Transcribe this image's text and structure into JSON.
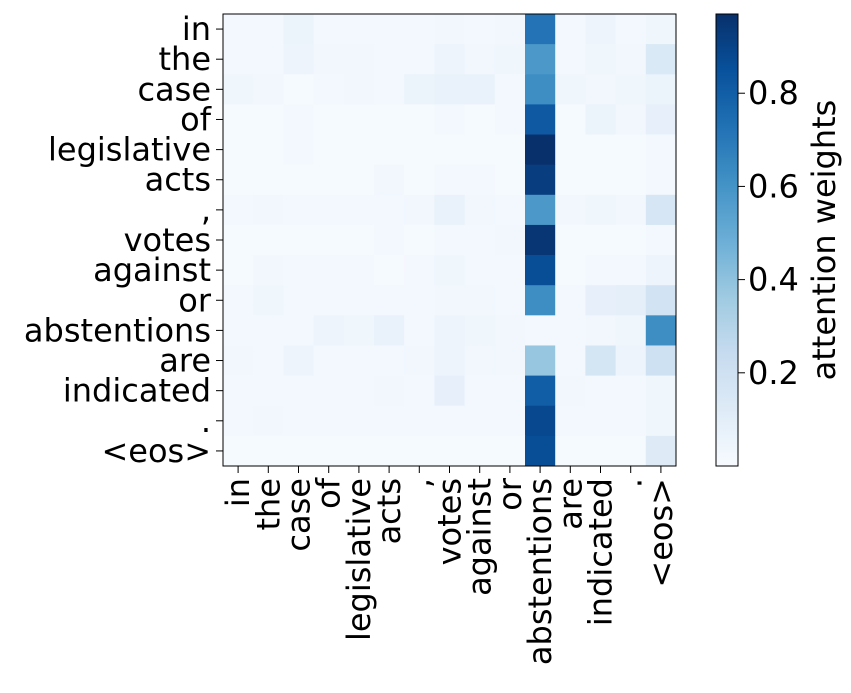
{
  "chart_data": {
    "type": "heatmap",
    "colormap": "Blues",
    "x_labels": [
      "in",
      "the",
      "case",
      "of",
      "legislative",
      "acts",
      ",",
      "votes",
      "against",
      "or",
      "abstentions",
      "are",
      "indicated",
      ".",
      "<eos>"
    ],
    "y_labels": [
      "in",
      "the",
      "case",
      "of",
      "legislative",
      "acts",
      ",",
      "votes",
      "against",
      "or",
      "abstentions",
      "are",
      "indicated",
      ".",
      "<eos>"
    ],
    "colorbar": {
      "label": "attention weights",
      "range": [
        0.0,
        0.97
      ],
      "ticks": [
        0.2,
        0.4,
        0.6,
        0.8
      ],
      "tick_labels": [
        "0.2",
        "0.4",
        "0.6",
        "0.8"
      ]
    },
    "values": [
      [
        0.02,
        0.02,
        0.06,
        0.02,
        0.02,
        0.02,
        0.02,
        0.03,
        0.02,
        0.03,
        0.72,
        0.02,
        0.05,
        0.02,
        0.04
      ],
      [
        0.02,
        0.02,
        0.05,
        0.03,
        0.03,
        0.02,
        0.02,
        0.05,
        0.03,
        0.04,
        0.58,
        0.02,
        0.04,
        0.03,
        0.14
      ],
      [
        0.04,
        0.03,
        0.01,
        0.02,
        0.03,
        0.02,
        0.06,
        0.07,
        0.07,
        0.02,
        0.62,
        0.04,
        0.03,
        0.04,
        0.06
      ],
      [
        0.01,
        0.01,
        0.02,
        0.01,
        0.01,
        0.01,
        0.01,
        0.02,
        0.01,
        0.02,
        0.82,
        0.01,
        0.06,
        0.03,
        0.08
      ],
      [
        0.01,
        0.01,
        0.02,
        0.01,
        0.01,
        0.01,
        0.01,
        0.01,
        0.01,
        0.01,
        0.97,
        0.01,
        0.01,
        0.01,
        0.02
      ],
      [
        0.01,
        0.01,
        0.01,
        0.01,
        0.01,
        0.03,
        0.01,
        0.02,
        0.02,
        0.01,
        0.92,
        0.01,
        0.01,
        0.01,
        0.02
      ],
      [
        0.02,
        0.03,
        0.02,
        0.02,
        0.02,
        0.02,
        0.03,
        0.07,
        0.03,
        0.02,
        0.58,
        0.03,
        0.04,
        0.03,
        0.16
      ],
      [
        0.01,
        0.01,
        0.01,
        0.01,
        0.01,
        0.02,
        0.01,
        0.02,
        0.02,
        0.03,
        0.95,
        0.01,
        0.01,
        0.01,
        0.02
      ],
      [
        0.01,
        0.03,
        0.02,
        0.02,
        0.02,
        0.01,
        0.02,
        0.04,
        0.02,
        0.02,
        0.86,
        0.01,
        0.02,
        0.02,
        0.05
      ],
      [
        0.02,
        0.04,
        0.02,
        0.02,
        0.02,
        0.02,
        0.02,
        0.03,
        0.03,
        0.02,
        0.62,
        0.02,
        0.08,
        0.09,
        0.18
      ],
      [
        0.02,
        0.02,
        0.02,
        0.05,
        0.04,
        0.07,
        0.02,
        0.05,
        0.04,
        0.03,
        0.02,
        0.02,
        0.03,
        0.04,
        0.62
      ],
      [
        0.03,
        0.02,
        0.05,
        0.02,
        0.02,
        0.02,
        0.03,
        0.05,
        0.03,
        0.03,
        0.38,
        0.02,
        0.17,
        0.05,
        0.2
      ],
      [
        0.02,
        0.02,
        0.02,
        0.02,
        0.02,
        0.03,
        0.02,
        0.08,
        0.02,
        0.02,
        0.8,
        0.03,
        0.02,
        0.02,
        0.04
      ],
      [
        0.02,
        0.03,
        0.02,
        0.02,
        0.02,
        0.02,
        0.02,
        0.02,
        0.02,
        0.02,
        0.88,
        0.02,
        0.02,
        0.02,
        0.04
      ],
      [
        0.01,
        0.01,
        0.01,
        0.01,
        0.01,
        0.01,
        0.01,
        0.01,
        0.01,
        0.01,
        0.86,
        0.01,
        0.01,
        0.01,
        0.12
      ]
    ]
  }
}
